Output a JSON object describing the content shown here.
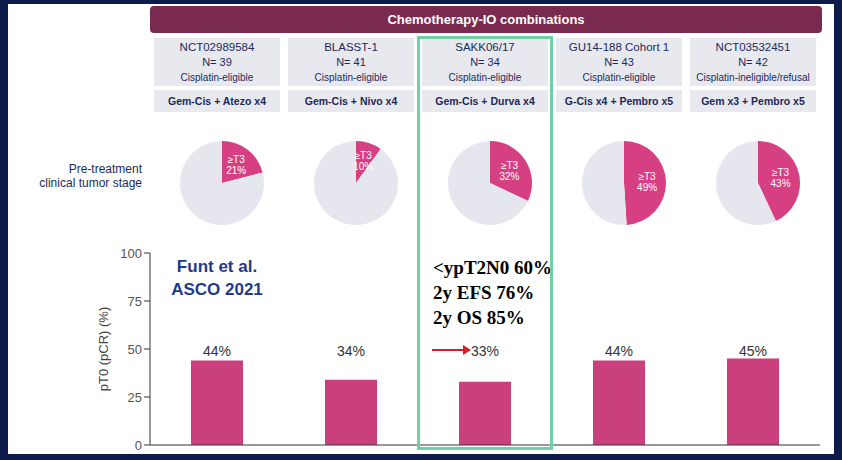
{
  "header": "Chemotherapy-IO combinations",
  "row_label": [
    "Pre-treatment",
    "clinical tumor stage"
  ],
  "trials": [
    {
      "name": "NCT02989584",
      "n": "N= 39",
      "eligibility": "Cisplatin-eligible",
      "regimen": "Gem-Cis + Atezo x4"
    },
    {
      "name": "BLASST-1",
      "n": "N= 41",
      "eligibility": "Cisplatin-eligible",
      "regimen": "Gem-Cis + Nivo x4"
    },
    {
      "name": "SAKK06/17",
      "n": "N= 34",
      "eligibility": "Cisplatin-eligible",
      "regimen": "Gem-Cis + Durva x4"
    },
    {
      "name": "GU14-188 Cohort 1",
      "n": "N= 43",
      "eligibility": "Cisplatin-eligible",
      "regimen": "G-Cis x4 + Pembro x5"
    },
    {
      "name": "NCT03532451",
      "n": "N= 42",
      "eligibility": "Cisplatin-ineligible/refusal",
      "regimen": "Gem x3 + Pembro x5"
    }
  ],
  "annotations": {
    "citation": [
      "Funt et al.",
      "ASCO 2021"
    ],
    "highlight_notes": [
      "<ypT2N0 60%",
      "2y EFS 76%",
      "2y OS 85%"
    ]
  },
  "chart_data": [
    {
      "type": "pie",
      "categories": [
        "≥T3",
        null
      ],
      "values": [
        21,
        79
      ],
      "value_labels": [
        "21%",
        null
      ],
      "colors": [
        "#d63f82",
        "#e6e6ee"
      ],
      "data_labels": true
    },
    {
      "type": "pie",
      "categories": [
        "≥T3",
        null
      ],
      "values": [
        10,
        90
      ],
      "value_labels": [
        "10%",
        null
      ],
      "colors": [
        "#d63f82",
        "#e6e6ee"
      ],
      "data_labels": true
    },
    {
      "type": "pie",
      "categories": [
        "≥T3",
        null
      ],
      "values": [
        32,
        68
      ],
      "value_labels": [
        "32%",
        null
      ],
      "colors": [
        "#d63f82",
        "#e6e6ee"
      ],
      "data_labels": true
    },
    {
      "type": "pie",
      "categories": [
        "≥T3",
        null
      ],
      "values": [
        49,
        51
      ],
      "value_labels": [
        "49%",
        null
      ],
      "colors": [
        "#d63f82",
        "#e6e6ee"
      ],
      "data_labels": true
    },
    {
      "type": "pie",
      "categories": [
        "≥T3",
        null
      ],
      "values": [
        43,
        57
      ],
      "value_labels": [
        "43%",
        null
      ],
      "colors": [
        "#d63f82",
        "#e6e6ee"
      ],
      "data_labels": true
    },
    {
      "type": "bar",
      "categories": [
        null,
        null,
        null,
        null,
        null
      ],
      "values": [
        44,
        34,
        33,
        44,
        45
      ],
      "value_labels": [
        "44%",
        "34%",
        "33%",
        "44%",
        "45%"
      ],
      "data_labels": true,
      "color": "#c9407c",
      "ylim": [
        0,
        100
      ],
      "yticks": [
        0,
        25,
        50,
        75,
        100
      ],
      "y_label": "pT0 (pCR) (%)",
      "tick_labels": "y",
      "grid": false
    }
  ]
}
